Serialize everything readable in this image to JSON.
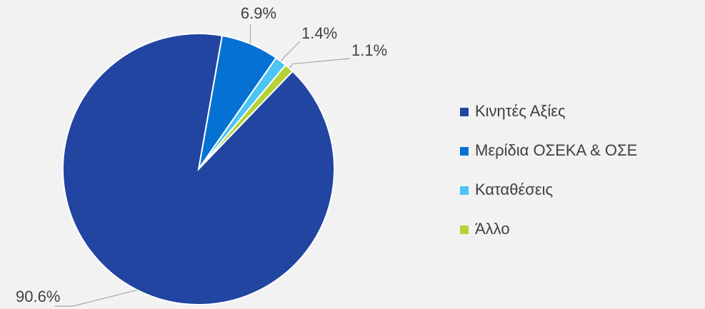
{
  "chart_data": {
    "type": "pie",
    "categories": [
      "Κινητές Αξίες",
      "Μερίδια ΟΣΕΚΑ & ΟΣΕ",
      "Καταθέσεις",
      "Άλλο"
    ],
    "values": [
      90.6,
      6.9,
      1.4,
      1.1
    ],
    "value_labels": [
      "90.6%",
      "6.9%",
      "1.4%",
      "1.1%"
    ],
    "colors": [
      "#2145a0",
      "#0571d3",
      "#4cc4f5",
      "#b6d234"
    ],
    "legend": "right"
  }
}
